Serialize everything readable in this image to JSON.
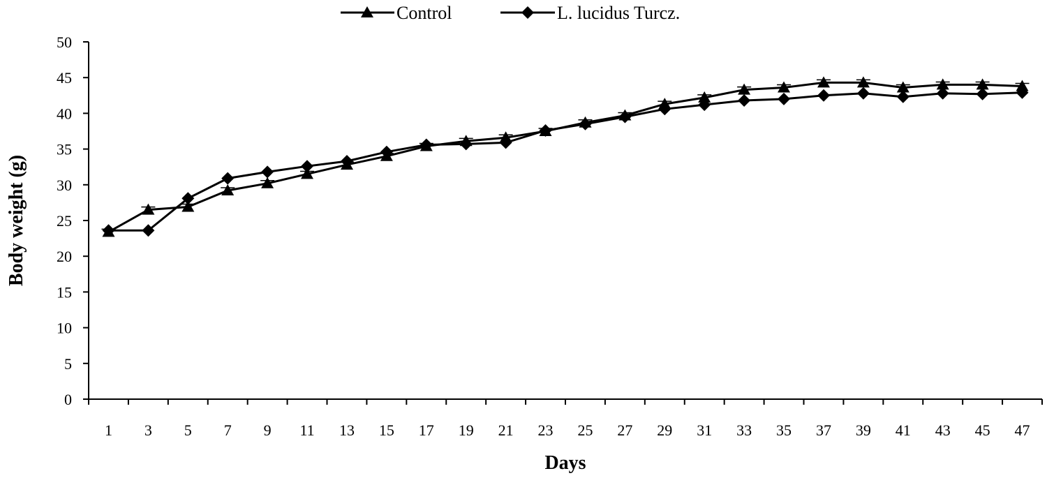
{
  "chart_data": {
    "type": "line",
    "title": "",
    "xlabel": "Days",
    "ylabel": "Body weight (g)",
    "ylim": [
      0,
      50
    ],
    "yticks": [
      "0",
      "5",
      "10",
      "15",
      "20",
      "25",
      "30",
      "35",
      "40",
      "45",
      "50"
    ],
    "categories": [
      "1",
      "3",
      "5",
      "7",
      "9",
      "11",
      "13",
      "15",
      "17",
      "19",
      "21",
      "23",
      "25",
      "27",
      "29",
      "31",
      "33",
      "35",
      "37",
      "39",
      "41",
      "43",
      "45",
      "47"
    ],
    "legend_position": "top-center",
    "series": [
      {
        "name": "Control",
        "marker": "triangle",
        "values": [
          23.4,
          26.5,
          26.9,
          29.2,
          30.2,
          31.5,
          32.8,
          34.0,
          35.4,
          36.1,
          36.6,
          37.5,
          38.7,
          39.7,
          41.3,
          42.2,
          43.3,
          43.6,
          44.3,
          44.3,
          43.6,
          44.0,
          44.0,
          43.8
        ]
      },
      {
        "name": "L. lucidus Turcz.",
        "marker": "diamond",
        "values": [
          23.6,
          23.6,
          28.1,
          30.9,
          31.8,
          32.6,
          33.3,
          34.6,
          35.6,
          35.7,
          35.9,
          37.6,
          38.5,
          39.5,
          40.6,
          41.2,
          41.8,
          42.0,
          42.5,
          42.8,
          42.3,
          42.8,
          42.7,
          42.9
        ]
      }
    ]
  }
}
